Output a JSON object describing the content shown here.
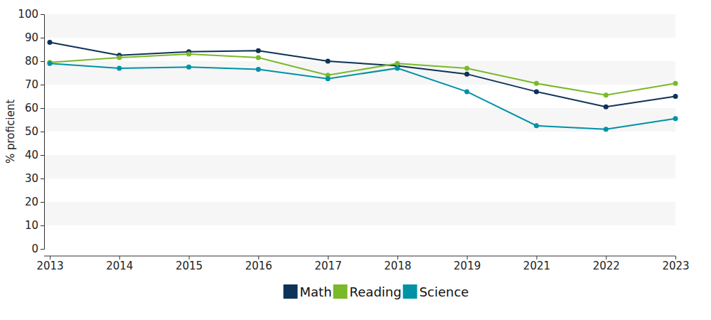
{
  "chart_data": {
    "type": "line",
    "y_label": "% proficient",
    "categories": [
      "2013",
      "2014",
      "2015",
      "2016",
      "2017",
      "2018",
      "2019",
      "2021",
      "2022",
      "2023"
    ],
    "series": [
      {
        "name": "Math",
        "color": "#0d3358",
        "values": [
          88,
          82.5,
          84,
          84.5,
          80,
          78,
          74.5,
          67,
          60.5,
          65
        ]
      },
      {
        "name": "Reading",
        "color": "#7ab929",
        "values": [
          79.5,
          81.5,
          83,
          81.5,
          74,
          79,
          77,
          70.5,
          65.5,
          70.5
        ]
      },
      {
        "name": "Science",
        "color": "#0092a5",
        "values": [
          79,
          77,
          77.5,
          76.5,
          72.5,
          77,
          67,
          52.5,
          51,
          55.5
        ]
      }
    ],
    "ylim": [
      0,
      100
    ],
    "yticks": [
      0,
      10,
      20,
      30,
      40,
      50,
      60,
      70,
      80,
      90,
      100
    ],
    "grid": true,
    "marker": "circle",
    "legend": "bottom"
  }
}
